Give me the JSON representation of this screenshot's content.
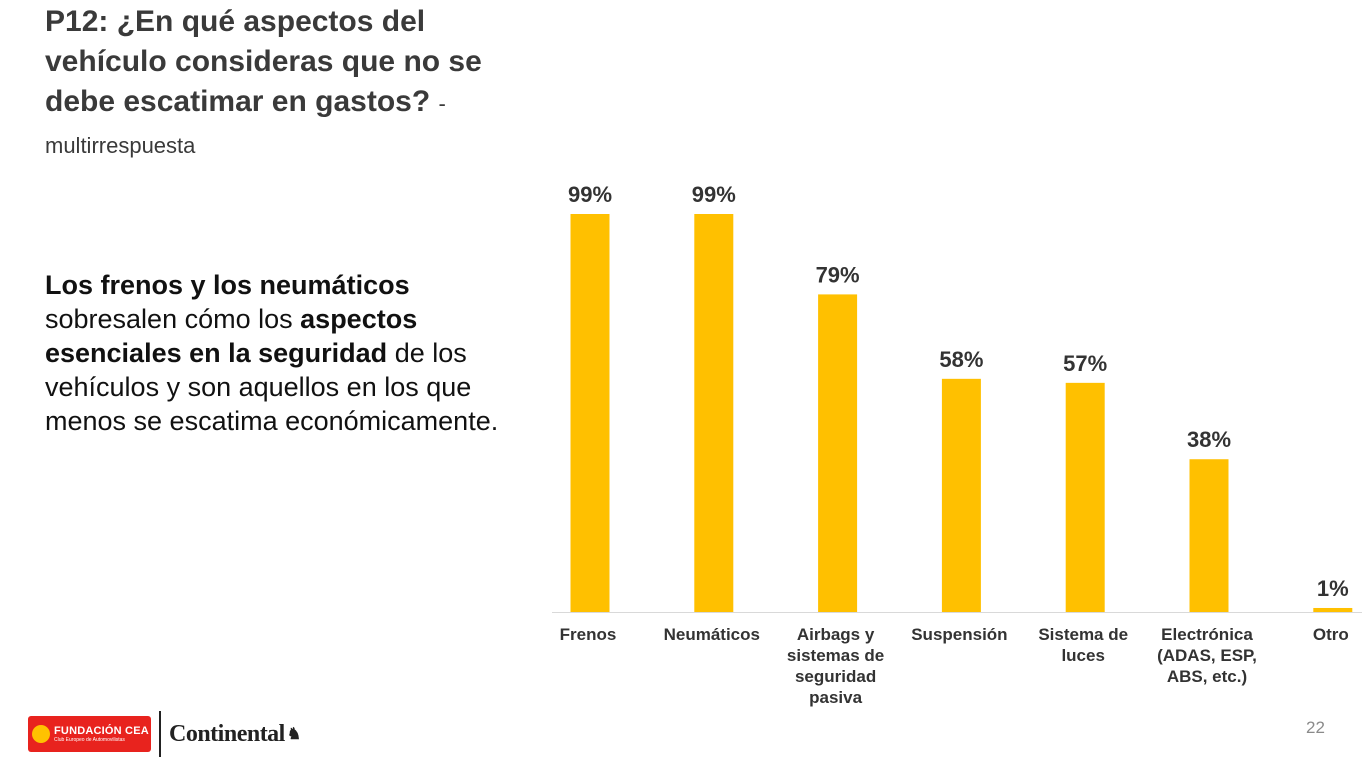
{
  "slide": {
    "title_main": "P12: ¿En qué aspectos del vehículo consideras que no se debe escatimar en gastos?",
    "title_suffix": "- multirrespuesta",
    "body": {
      "bold1": "Los frenos y los neumáticos",
      "text1": "sobresalen cómo los",
      "bold2": "aspectos esenciales en la seguridad",
      "text2": "de los vehículos y son aquellos en los que menos se escatima económicamente."
    },
    "page_number": "22"
  },
  "logos": {
    "cea_name": "FUNDACIÓN CEA",
    "cea_tagline": "Club Europeo de Automovilistas",
    "continental_name": "Continental"
  },
  "colors": {
    "bar": "#ffc000",
    "axis": "#d9d9d9",
    "text": "#333333",
    "cea_red": "#e8231e"
  },
  "chart_data": {
    "type": "bar",
    "title": "",
    "categories": [
      [
        "Frenos"
      ],
      [
        "Neumáticos"
      ],
      [
        "Airbags y",
        "sistemas de",
        "seguridad",
        "pasiva"
      ],
      [
        "Suspensión"
      ],
      [
        "Sistema de",
        "luces"
      ],
      [
        "Electrónica",
        "(ADAS, ESP,",
        "ABS, etc.)"
      ],
      [
        "Otro"
      ]
    ],
    "values": [
      99,
      99,
      79,
      58,
      57,
      38,
      1
    ],
    "value_labels": [
      "99%",
      "99%",
      "79%",
      "58%",
      "57%",
      "38%",
      "1%"
    ],
    "ylim": [
      0,
      100
    ],
    "grid": false,
    "legend": "none"
  }
}
